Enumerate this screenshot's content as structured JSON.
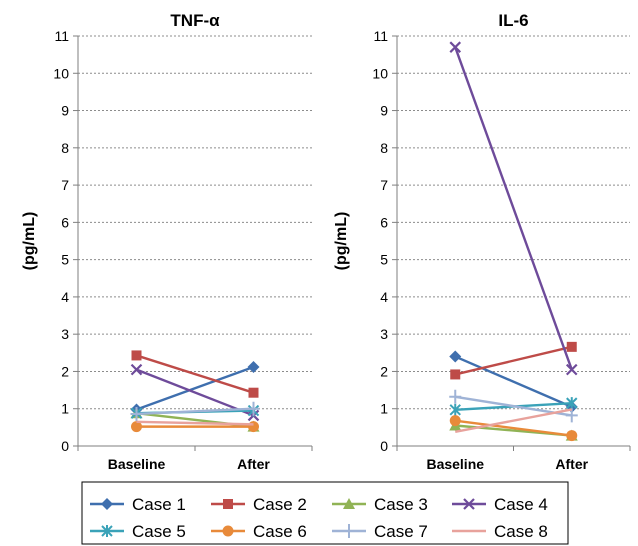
{
  "chart_data": [
    {
      "type": "line",
      "title": "TNF-α",
      "ylabel": "(pg/mL)",
      "xlabel": "",
      "categories": [
        "Baseline",
        "After"
      ],
      "ylim": [
        0,
        11
      ],
      "yticks": [
        0,
        1,
        2,
        3,
        4,
        5,
        6,
        7,
        8,
        9,
        10,
        11
      ],
      "grid": true,
      "series": [
        {
          "name": "Case 1",
          "values": [
            0.98,
            2.12
          ]
        },
        {
          "name": "Case 2",
          "values": [
            2.43,
            1.43
          ]
        },
        {
          "name": "Case 3",
          "values": [
            0.88,
            0.52
          ]
        },
        {
          "name": "Case 4",
          "values": [
            2.05,
            0.82
          ]
        },
        {
          "name": "Case 5",
          "values": [
            0.88,
            0.95
          ]
        },
        {
          "name": "Case 6",
          "values": [
            0.52,
            0.52
          ]
        },
        {
          "name": "Case 7",
          "values": [
            0.86,
            1.0
          ]
        },
        {
          "name": "Case 8",
          "values": [
            0.65,
            0.58
          ]
        }
      ]
    },
    {
      "type": "line",
      "title": "IL-6",
      "ylabel": "(pg/mL)",
      "xlabel": "",
      "categories": [
        "Baseline",
        "After"
      ],
      "ylim": [
        0,
        11
      ],
      "yticks": [
        0,
        1,
        2,
        3,
        4,
        5,
        6,
        7,
        8,
        9,
        10,
        11
      ],
      "grid": true,
      "series": [
        {
          "name": "Case 1",
          "values": [
            2.4,
            1.05
          ]
        },
        {
          "name": "Case 2",
          "values": [
            1.92,
            2.66
          ]
        },
        {
          "name": "Case 3",
          "values": [
            0.55,
            0.28
          ]
        },
        {
          "name": "Case 4",
          "values": [
            10.7,
            2.05
          ]
        },
        {
          "name": "Case 5",
          "values": [
            0.97,
            1.15
          ]
        },
        {
          "name": "Case 6",
          "values": [
            0.68,
            0.28
          ]
        },
        {
          "name": "Case 7",
          "values": [
            1.32,
            0.82
          ]
        },
        {
          "name": "Case 8",
          "values": [
            0.38,
            0.98
          ]
        }
      ]
    }
  ],
  "legend": {
    "placement": "bottom",
    "items": [
      {
        "name": "Case 1",
        "color": "#3f6fae",
        "marker": "diamond"
      },
      {
        "name": "Case 2",
        "color": "#be4b48",
        "marker": "square"
      },
      {
        "name": "Case 3",
        "color": "#90b355",
        "marker": "triangle"
      },
      {
        "name": "Case 4",
        "color": "#6e4b9a",
        "marker": "x"
      },
      {
        "name": "Case 5",
        "color": "#3aa2b8",
        "marker": "asterisk"
      },
      {
        "name": "Case 6",
        "color": "#e88a3a",
        "marker": "circle"
      },
      {
        "name": "Case 7",
        "color": "#9fb3d6",
        "marker": "plus"
      },
      {
        "name": "Case 8",
        "color": "#e8a29c",
        "marker": "none"
      }
    ]
  }
}
